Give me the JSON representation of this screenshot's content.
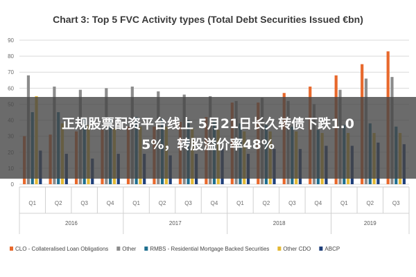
{
  "chart_data": {
    "type": "bar",
    "title": "Chart 3: Top 5 FVC Activity types (Total Debt Securities Issued €bn)",
    "xlabel": "",
    "ylabel": "",
    "ylim": [
      0,
      90
    ],
    "yticks": [
      0,
      10,
      20,
      30,
      40,
      50,
      60,
      70,
      80,
      90
    ],
    "grid": true,
    "legend_position": "bottom",
    "categories": [
      "Q1",
      "Q2",
      "Q3",
      "Q4",
      "Q1",
      "Q2",
      "Q3",
      "Q4",
      "Q1",
      "Q2",
      "Q3",
      "Q4",
      "Q1",
      "Q2",
      "Q3"
    ],
    "years": [
      {
        "label": "2016",
        "count": 4
      },
      {
        "label": "2017",
        "count": 4
      },
      {
        "label": "2018",
        "count": 4
      },
      {
        "label": "2019",
        "count": 3
      }
    ],
    "series": [
      {
        "name": "CLO - Collateralised Loan Obligations",
        "color": "#e8692d",
        "values": [
          30,
          31,
          33,
          34,
          36,
          36,
          39,
          42,
          51,
          51,
          57,
          61,
          68,
          75,
          83
        ]
      },
      {
        "name": "Other",
        "color": "#8c8c8c",
        "values": [
          68,
          61,
          59,
          60,
          61,
          58,
          56,
          55,
          52,
          54,
          52,
          50,
          59,
          66,
          67
        ]
      },
      {
        "name": "RMBS - Residential Mortgage Backed Securities",
        "color": "#1f6f8f",
        "values": [
          45,
          45,
          41,
          41,
          42,
          41,
          40,
          40,
          38,
          37,
          36,
          34,
          37,
          38,
          36
        ]
      },
      {
        "name": "Other CDO",
        "color": "#e3b833",
        "values": [
          55,
          38,
          37,
          35,
          36,
          36,
          35,
          34,
          33,
          33,
          33,
          32,
          32,
          32,
          32
        ]
      },
      {
        "name": "ABCP",
        "color": "#1f3f7a",
        "values": [
          21,
          19,
          16,
          19,
          19,
          18,
          19,
          22,
          19,
          22,
          22,
          24,
          24,
          26,
          25
        ]
      }
    ]
  },
  "overlay": {
    "line1": "正规股票配资平台线上 5月21日长久转债下跌1.0",
    "line2": "5%，转股溢价率48%"
  }
}
